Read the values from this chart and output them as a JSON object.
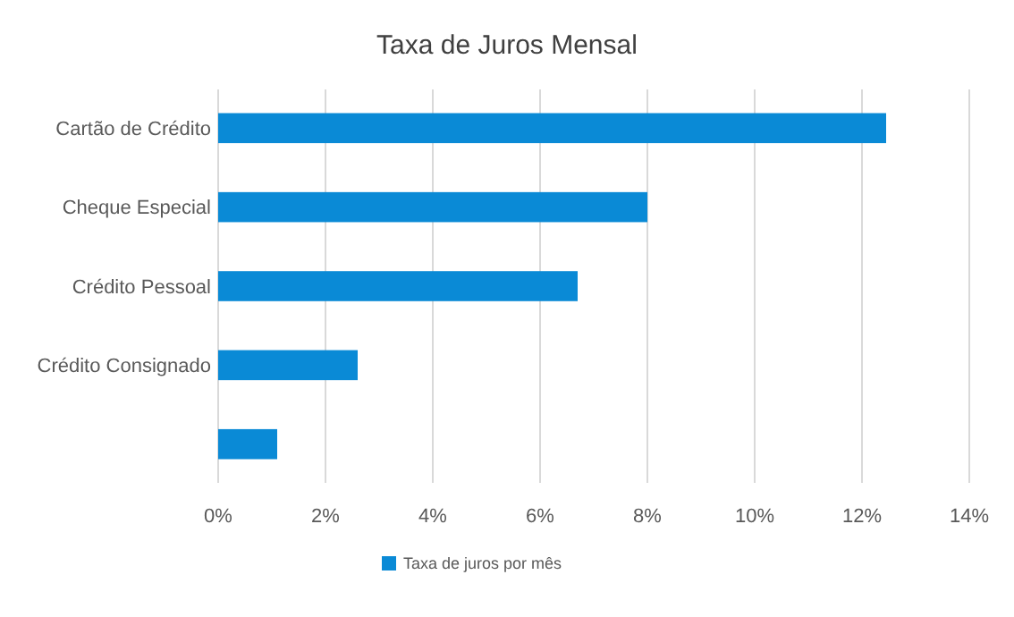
{
  "chart_data": {
    "type": "bar",
    "orientation": "horizontal",
    "title": "Taxa de Juros Mensal",
    "categories": [
      "Cartão de Crédito",
      "Cheque Especial",
      "Crédito Pessoal",
      "Crédito Consignado",
      null
    ],
    "series": [
      {
        "name": "Taxa de juros por mês",
        "color": "#0a8ad6",
        "values": [
          12.45,
          8.0,
          6.7,
          2.6,
          1.1
        ]
      }
    ],
    "xlim": [
      0,
      14
    ],
    "xticks": [
      {
        "value": 0,
        "label": "0%"
      },
      {
        "value": 2,
        "label": "2%"
      },
      {
        "value": 4,
        "label": "4%"
      },
      {
        "value": 6,
        "label": "6%"
      },
      {
        "value": 8,
        "label": "8%"
      },
      {
        "value": 10,
        "label": "10%"
      },
      {
        "value": 12,
        "label": "12%"
      },
      {
        "value": 14,
        "label": "14%"
      }
    ],
    "grid": "x",
    "legend": "bottom"
  }
}
